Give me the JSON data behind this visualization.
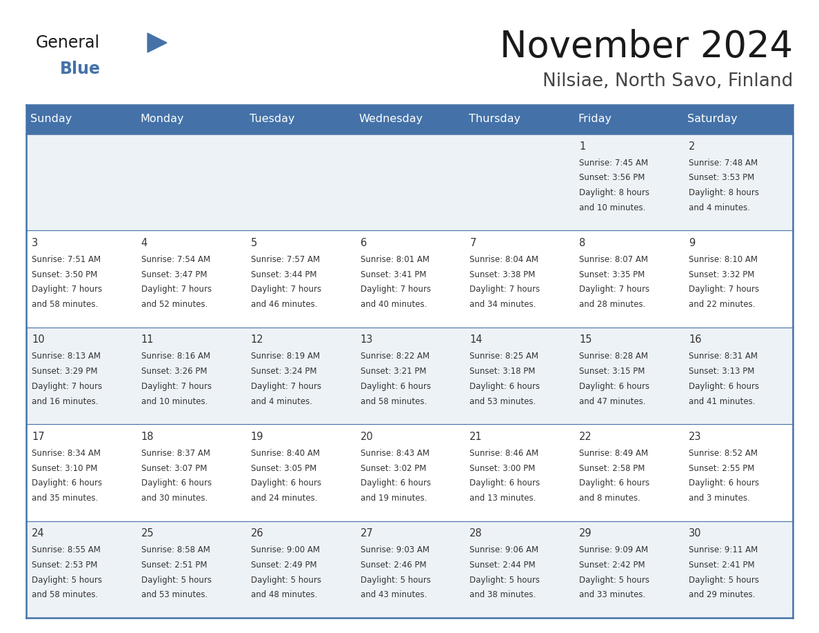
{
  "title": "November 2024",
  "subtitle": "Nilsiae, North Savo, Finland",
  "header_bg": "#4472a8",
  "header_text_color": "#ffffff",
  "cell_bg_even": "#edf2f7",
  "cell_bg_odd": "#ffffff",
  "border_color": "#4472a8",
  "line_color": "#4472a8",
  "text_color": "#333333",
  "day_names": [
    "Sunday",
    "Monday",
    "Tuesday",
    "Wednesday",
    "Thursday",
    "Friday",
    "Saturday"
  ],
  "days": [
    {
      "day": 1,
      "col": 5,
      "row": 0,
      "sunrise": "7:45 AM",
      "sunset": "3:56 PM",
      "daylight": "8 hours",
      "daylight2": "and 10 minutes."
    },
    {
      "day": 2,
      "col": 6,
      "row": 0,
      "sunrise": "7:48 AM",
      "sunset": "3:53 PM",
      "daylight": "8 hours",
      "daylight2": "and 4 minutes."
    },
    {
      "day": 3,
      "col": 0,
      "row": 1,
      "sunrise": "7:51 AM",
      "sunset": "3:50 PM",
      "daylight": "7 hours",
      "daylight2": "and 58 minutes."
    },
    {
      "day": 4,
      "col": 1,
      "row": 1,
      "sunrise": "7:54 AM",
      "sunset": "3:47 PM",
      "daylight": "7 hours",
      "daylight2": "and 52 minutes."
    },
    {
      "day": 5,
      "col": 2,
      "row": 1,
      "sunrise": "7:57 AM",
      "sunset": "3:44 PM",
      "daylight": "7 hours",
      "daylight2": "and 46 minutes."
    },
    {
      "day": 6,
      "col": 3,
      "row": 1,
      "sunrise": "8:01 AM",
      "sunset": "3:41 PM",
      "daylight": "7 hours",
      "daylight2": "and 40 minutes."
    },
    {
      "day": 7,
      "col": 4,
      "row": 1,
      "sunrise": "8:04 AM",
      "sunset": "3:38 PM",
      "daylight": "7 hours",
      "daylight2": "and 34 minutes."
    },
    {
      "day": 8,
      "col": 5,
      "row": 1,
      "sunrise": "8:07 AM",
      "sunset": "3:35 PM",
      "daylight": "7 hours",
      "daylight2": "and 28 minutes."
    },
    {
      "day": 9,
      "col": 6,
      "row": 1,
      "sunrise": "8:10 AM",
      "sunset": "3:32 PM",
      "daylight": "7 hours",
      "daylight2": "and 22 minutes."
    },
    {
      "day": 10,
      "col": 0,
      "row": 2,
      "sunrise": "8:13 AM",
      "sunset": "3:29 PM",
      "daylight": "7 hours",
      "daylight2": "and 16 minutes."
    },
    {
      "day": 11,
      "col": 1,
      "row": 2,
      "sunrise": "8:16 AM",
      "sunset": "3:26 PM",
      "daylight": "7 hours",
      "daylight2": "and 10 minutes."
    },
    {
      "day": 12,
      "col": 2,
      "row": 2,
      "sunrise": "8:19 AM",
      "sunset": "3:24 PM",
      "daylight": "7 hours",
      "daylight2": "and 4 minutes."
    },
    {
      "day": 13,
      "col": 3,
      "row": 2,
      "sunrise": "8:22 AM",
      "sunset": "3:21 PM",
      "daylight": "6 hours",
      "daylight2": "and 58 minutes."
    },
    {
      "day": 14,
      "col": 4,
      "row": 2,
      "sunrise": "8:25 AM",
      "sunset": "3:18 PM",
      "daylight": "6 hours",
      "daylight2": "and 53 minutes."
    },
    {
      "day": 15,
      "col": 5,
      "row": 2,
      "sunrise": "8:28 AM",
      "sunset": "3:15 PM",
      "daylight": "6 hours",
      "daylight2": "and 47 minutes."
    },
    {
      "day": 16,
      "col": 6,
      "row": 2,
      "sunrise": "8:31 AM",
      "sunset": "3:13 PM",
      "daylight": "6 hours",
      "daylight2": "and 41 minutes."
    },
    {
      "day": 17,
      "col": 0,
      "row": 3,
      "sunrise": "8:34 AM",
      "sunset": "3:10 PM",
      "daylight": "6 hours",
      "daylight2": "and 35 minutes."
    },
    {
      "day": 18,
      "col": 1,
      "row": 3,
      "sunrise": "8:37 AM",
      "sunset": "3:07 PM",
      "daylight": "6 hours",
      "daylight2": "and 30 minutes."
    },
    {
      "day": 19,
      "col": 2,
      "row": 3,
      "sunrise": "8:40 AM",
      "sunset": "3:05 PM",
      "daylight": "6 hours",
      "daylight2": "and 24 minutes."
    },
    {
      "day": 20,
      "col": 3,
      "row": 3,
      "sunrise": "8:43 AM",
      "sunset": "3:02 PM",
      "daylight": "6 hours",
      "daylight2": "and 19 minutes."
    },
    {
      "day": 21,
      "col": 4,
      "row": 3,
      "sunrise": "8:46 AM",
      "sunset": "3:00 PM",
      "daylight": "6 hours",
      "daylight2": "and 13 minutes."
    },
    {
      "day": 22,
      "col": 5,
      "row": 3,
      "sunrise": "8:49 AM",
      "sunset": "2:58 PM",
      "daylight": "6 hours",
      "daylight2": "and 8 minutes."
    },
    {
      "day": 23,
      "col": 6,
      "row": 3,
      "sunrise": "8:52 AM",
      "sunset": "2:55 PM",
      "daylight": "6 hours",
      "daylight2": "and 3 minutes."
    },
    {
      "day": 24,
      "col": 0,
      "row": 4,
      "sunrise": "8:55 AM",
      "sunset": "2:53 PM",
      "daylight": "5 hours",
      "daylight2": "and 58 minutes."
    },
    {
      "day": 25,
      "col": 1,
      "row": 4,
      "sunrise": "8:58 AM",
      "sunset": "2:51 PM",
      "daylight": "5 hours",
      "daylight2": "and 53 minutes."
    },
    {
      "day": 26,
      "col": 2,
      "row": 4,
      "sunrise": "9:00 AM",
      "sunset": "2:49 PM",
      "daylight": "5 hours",
      "daylight2": "and 48 minutes."
    },
    {
      "day": 27,
      "col": 3,
      "row": 4,
      "sunrise": "9:03 AM",
      "sunset": "2:46 PM",
      "daylight": "5 hours",
      "daylight2": "and 43 minutes."
    },
    {
      "day": 28,
      "col": 4,
      "row": 4,
      "sunrise": "9:06 AM",
      "sunset": "2:44 PM",
      "daylight": "5 hours",
      "daylight2": "and 38 minutes."
    },
    {
      "day": 29,
      "col": 5,
      "row": 4,
      "sunrise": "9:09 AM",
      "sunset": "2:42 PM",
      "daylight": "5 hours",
      "daylight2": "and 33 minutes."
    },
    {
      "day": 30,
      "col": 6,
      "row": 4,
      "sunrise": "9:11 AM",
      "sunset": "2:41 PM",
      "daylight": "5 hours",
      "daylight2": "and 29 minutes."
    }
  ],
  "num_rows": 5,
  "num_cols": 7,
  "logo_general_color": "#1a1a1a",
  "logo_blue_color": "#4472a8",
  "logo_triangle_color": "#4472a8",
  "figwidth": 11.88,
  "figheight": 9.18,
  "dpi": 100
}
